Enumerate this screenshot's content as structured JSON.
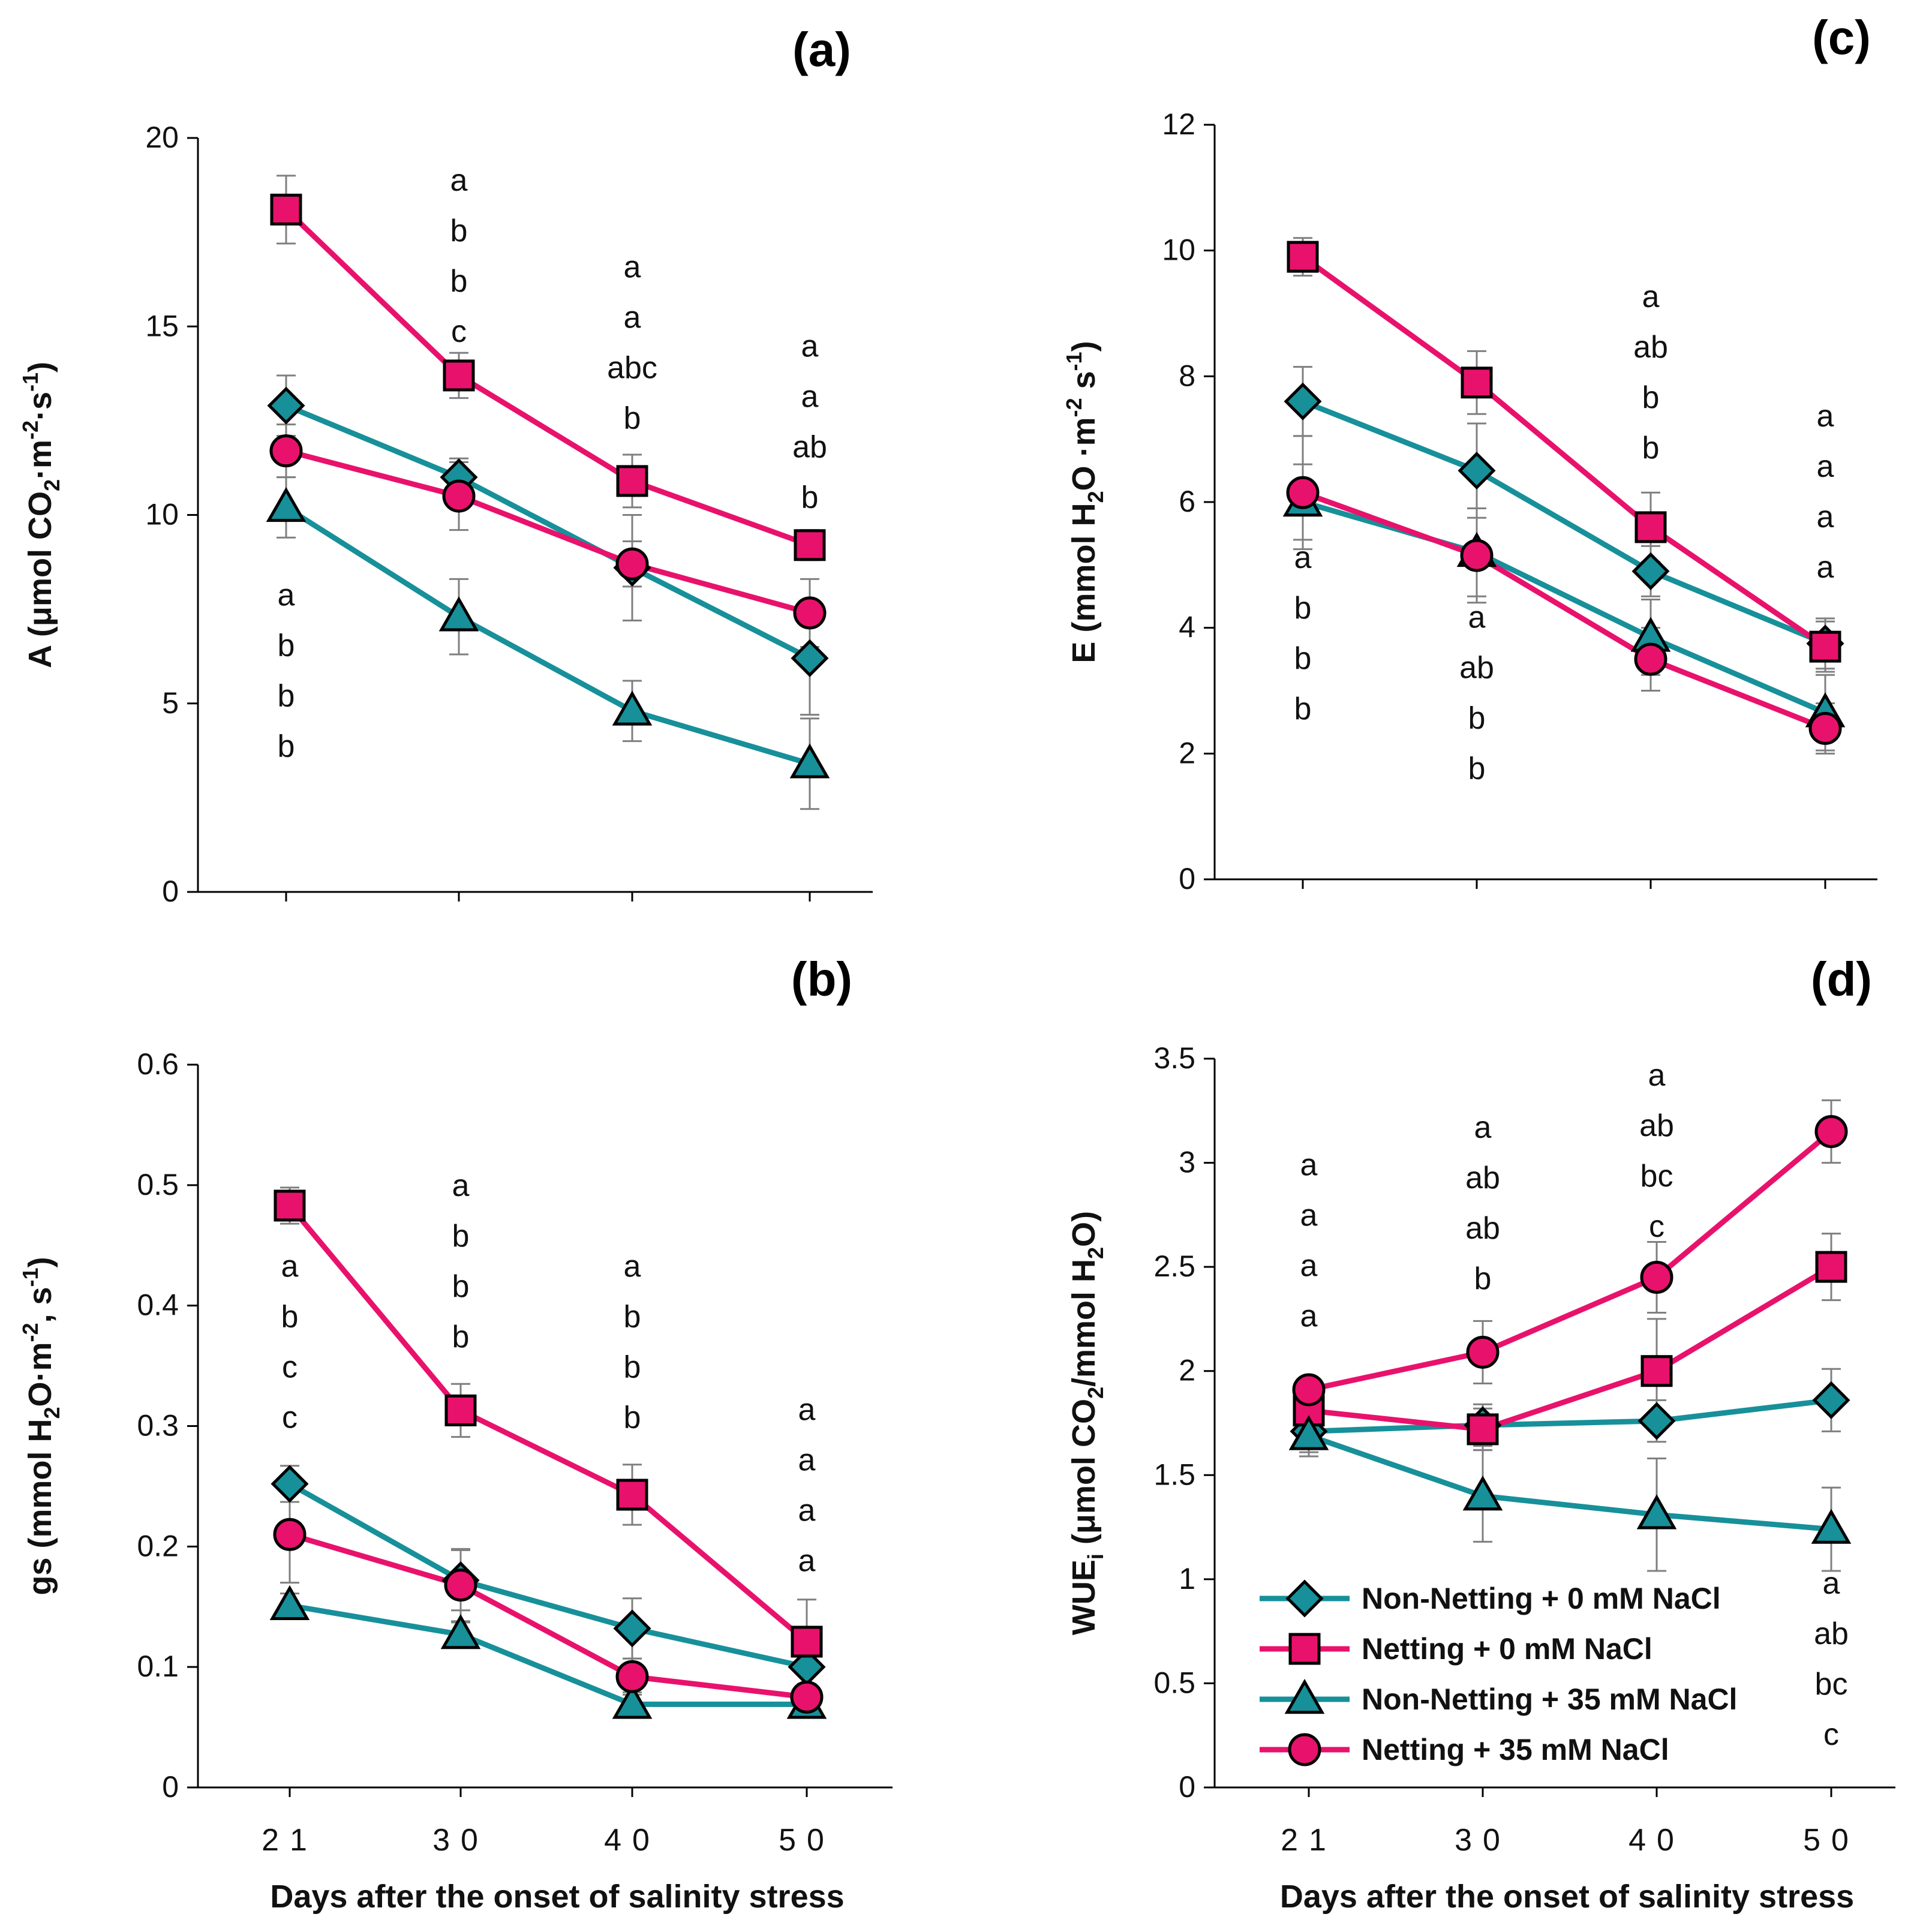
{
  "colors": {
    "teal": "#17909a",
    "magenta": "#e8126c",
    "axis": "#000000",
    "error_bar": "#7f7f7f",
    "background": "#ffffff"
  },
  "chart_data": [
    {
      "id": "a",
      "panel_label": "(a)",
      "type": "line",
      "title": "",
      "x": [
        "21",
        "30",
        "40",
        "50"
      ],
      "ylabel_parts": [
        "A (μmol CO",
        "2",
        "·m",
        "-2",
        "·s",
        "-1",
        ")"
      ],
      "xlabel": "",
      "ylim": [
        0,
        20
      ],
      "yticks": [
        "0",
        "5",
        "10",
        "15",
        "20"
      ],
      "show_x_ticks": false,
      "series": [
        {
          "name": "Non-Netting + 0 mM NaCl",
          "marker": "diamond",
          "color": "teal",
          "values": [
            12.9,
            11.0,
            8.6,
            6.2
          ],
          "errors": [
            0.8,
            0.5,
            1.4,
            1.5
          ]
        },
        {
          "name": "Netting + 0 mM NaCl",
          "marker": "square",
          "color": "magenta",
          "values": [
            18.1,
            13.7,
            10.9,
            9.2
          ],
          "errors": [
            0.9,
            0.6,
            0.7,
            0.4
          ]
        },
        {
          "name": "Non-Netting + 35 mM NaCl",
          "marker": "triangle",
          "color": "teal",
          "values": [
            10.2,
            7.3,
            4.8,
            3.4
          ],
          "errors": [
            0.8,
            1.0,
            0.8,
            1.2
          ]
        },
        {
          "name": "Netting + 35 mM NaCl",
          "marker": "circle",
          "color": "magenta",
          "values": [
            11.7,
            10.5,
            8.7,
            7.4
          ],
          "errors": [
            0.7,
            0.9,
            0.6,
            0.9
          ]
        }
      ],
      "letters": [
        {
          "x": "21",
          "y_top": 7.6,
          "values": [
            "a",
            "b",
            "b",
            "b"
          ]
        },
        {
          "x": "30",
          "y_top": 18.6,
          "values": [
            "a",
            "b",
            "b",
            "c"
          ]
        },
        {
          "x": "40",
          "y_top": 16.3,
          "values": [
            "a",
            "a",
            "abc",
            "b"
          ]
        },
        {
          "x": "50",
          "y_top": 14.2,
          "values": [
            "a",
            "a",
            "ab",
            "b"
          ]
        }
      ]
    },
    {
      "id": "b",
      "panel_label": "(b)",
      "type": "line",
      "title": "",
      "x": [
        "21",
        "30",
        "40",
        "50"
      ],
      "ylabel_parts": [
        "gs (mmol H",
        "2",
        "O·m",
        "-2",
        ", s",
        "-1",
        ")"
      ],
      "xlabel": "Days after the onset of salinity stress",
      "ylim": [
        0,
        0.6
      ],
      "yticks": [
        "0",
        "0.1",
        "0.2",
        "0.3",
        "0.4",
        "0.5",
        "0.6"
      ],
      "show_x_ticks": true,
      "series": [
        {
          "name": "Non-Netting + 0 mM NaCl",
          "marker": "diamond",
          "color": "teal",
          "values": [
            0.252,
            0.172,
            0.132,
            0.1
          ],
          "errors": [
            0.015,
            0.025,
            0.025,
            0.015
          ]
        },
        {
          "name": "Netting + 0 mM NaCl",
          "marker": "square",
          "color": "magenta",
          "values": [
            0.483,
            0.313,
            0.243,
            0.121
          ],
          "errors": [
            0.015,
            0.022,
            0.025,
            0.035
          ]
        },
        {
          "name": "Non-Netting + 35 mM NaCl",
          "marker": "triangle",
          "color": "teal",
          "values": [
            0.151,
            0.127,
            0.069,
            0.069
          ],
          "errors": [
            0.01,
            0.01,
            0.01,
            0.01
          ]
        },
        {
          "name": "Netting + 35 mM NaCl",
          "marker": "circle",
          "color": "magenta",
          "values": [
            0.21,
            0.168,
            0.092,
            0.075
          ],
          "errors": [
            0.04,
            0.03,
            0.015,
            0.01
          ]
        }
      ],
      "letters": [
        {
          "x": "21",
          "y_top": 0.424,
          "values": [
            "a",
            "b",
            "c",
            "c"
          ]
        },
        {
          "x": "30",
          "y_top": 0.491,
          "values": [
            "a",
            "b",
            "b",
            "b"
          ]
        },
        {
          "x": "40",
          "y_top": 0.424,
          "values": [
            "a",
            "b",
            "b",
            "b"
          ]
        },
        {
          "x": "50",
          "y_top": 0.305,
          "values": [
            "a",
            "a",
            "a",
            "a"
          ]
        }
      ]
    },
    {
      "id": "c",
      "panel_label": "(c)",
      "type": "line",
      "title": "",
      "x": [
        "21",
        "30",
        "40",
        "50"
      ],
      "ylabel_parts": [
        "E (mmol H",
        "2",
        "O ·m",
        "-2",
        " s",
        "-1",
        ")"
      ],
      "xlabel": "",
      "ylim": [
        0,
        12
      ],
      "yticks": [
        "0",
        "2",
        "4",
        "6",
        "8",
        "10",
        "12"
      ],
      "show_x_ticks": false,
      "series": [
        {
          "name": "Non-Netting + 0 mM NaCl",
          "marker": "diamond",
          "color": "teal",
          "values": [
            7.6,
            6.5,
            4.9,
            3.75
          ],
          "errors": [
            0.55,
            0.75,
            0.4,
            0.4
          ]
        },
        {
          "name": "Netting + 0 mM NaCl",
          "marker": "square",
          "color": "magenta",
          "values": [
            9.9,
            7.9,
            5.6,
            3.7
          ],
          "errors": [
            0.3,
            0.5,
            0.55,
            0.4
          ]
        },
        {
          "name": "Non-Netting + 35 mM NaCl",
          "marker": "triangle",
          "color": "teal",
          "values": [
            6.0,
            5.2,
            3.85,
            2.65
          ],
          "errors": [
            0.6,
            0.7,
            0.6,
            0.6
          ]
        },
        {
          "name": "Netting + 35 mM NaCl",
          "marker": "circle",
          "color": "magenta",
          "values": [
            6.15,
            5.15,
            3.5,
            2.4
          ],
          "errors": [
            0.9,
            0.75,
            0.5,
            0.4
          ]
        }
      ],
      "letters": [
        {
          "x": "30",
          "y_top": 4.0,
          "values": [
            "a",
            "ab",
            "b",
            "b"
          ]
        },
        {
          "x": "40",
          "y_top": 9.1,
          "values": [
            "a",
            "ab",
            "b",
            "b"
          ]
        },
        {
          "x": "50",
          "y_top": 7.2,
          "values": [
            "a",
            "a",
            "a",
            "a"
          ]
        },
        {
          "x": "21",
          "y_top": 4.95,
          "values": [
            "a",
            "b",
            "b",
            "b"
          ]
        }
      ]
    },
    {
      "id": "d",
      "panel_label": "(d)",
      "type": "line",
      "title": "",
      "x": [
        "21",
        "30",
        "40",
        "50"
      ],
      "ylabel_parts": [
        "WUE",
        "i",
        " (μmol CO",
        "2",
        "/mmol H",
        "2",
        "O)"
      ],
      "xlabel": "Days after the onset of salinity stress",
      "ylim": [
        0,
        3.5
      ],
      "yticks": [
        "0",
        "0.5",
        "1",
        "1.5",
        "2",
        "2.5",
        "3",
        "3.5"
      ],
      "show_x_ticks": true,
      "series": [
        {
          "name": "Non-Netting + 0 mM NaCl",
          "marker": "diamond",
          "color": "teal",
          "values": [
            1.71,
            1.74,
            1.76,
            1.86
          ],
          "errors": [
            0.1,
            0.1,
            0.1,
            0.15
          ]
        },
        {
          "name": "Netting + 0 mM NaCl",
          "marker": "square",
          "color": "magenta",
          "values": [
            1.81,
            1.72,
            2.0,
            2.5
          ],
          "errors": [
            0.1,
            0.1,
            0.25,
            0.16
          ]
        },
        {
          "name": "Non-Netting + 35 mM NaCl",
          "marker": "triangle",
          "color": "teal",
          "values": [
            1.69,
            1.4,
            1.31,
            1.24
          ],
          "errors": [
            0.1,
            0.22,
            0.27,
            0.2
          ]
        },
        {
          "name": "Netting + 35 mM NaCl",
          "marker": "circle",
          "color": "magenta",
          "values": [
            1.91,
            2.09,
            2.45,
            3.15
          ],
          "errors": [
            0.06,
            0.15,
            0.17,
            0.15
          ]
        }
      ],
      "letters": [
        {
          "x": "21",
          "y_top": 2.94,
          "values": [
            "a",
            "a",
            "a",
            "a"
          ]
        },
        {
          "x": "30",
          "y_top": 3.12,
          "values": [
            "a",
            "ab",
            "ab",
            "b"
          ]
        },
        {
          "x": "40",
          "y_top": 3.37,
          "values": [
            "a",
            "ab",
            "bc",
            "c"
          ]
        },
        {
          "x": "50",
          "y_top": 0.93,
          "values": [
            "a",
            "ab",
            "bc",
            "c"
          ]
        }
      ],
      "legend": {
        "placement": "bottom-left",
        "entries": [
          "Non-Netting + 0 mM NaCl",
          "Netting + 0 mM NaCl",
          "Non-Netting + 35 mM NaCl",
          "Netting + 35 mM NaCl"
        ]
      }
    }
  ]
}
